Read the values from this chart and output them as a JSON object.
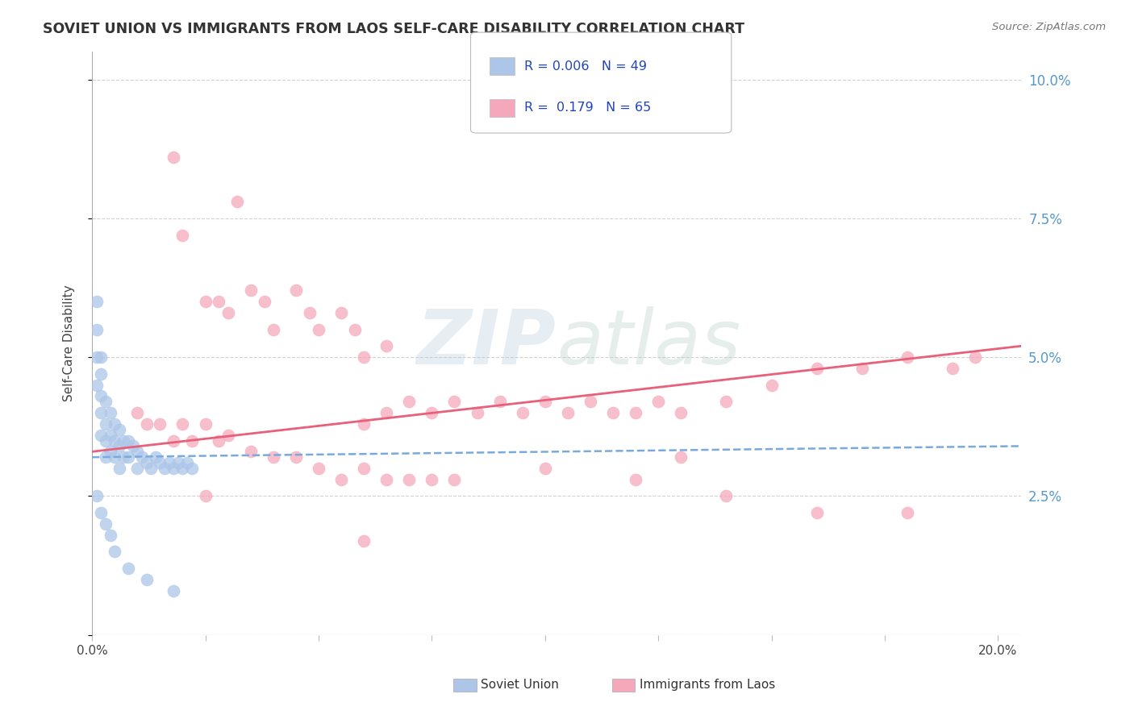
{
  "title": "SOVIET UNION VS IMMIGRANTS FROM LAOS SELF-CARE DISABILITY CORRELATION CHART",
  "source": "Source: ZipAtlas.com",
  "ylabel": "Self-Care Disability",
  "xlim": [
    0.0,
    0.205
  ],
  "ylim": [
    0.0,
    0.105
  ],
  "ytick_positions": [
    0.0,
    0.025,
    0.05,
    0.075,
    0.1
  ],
  "ytick_labels_right": [
    "",
    "2.5%",
    "5.0%",
    "7.5%",
    "10.0%"
  ],
  "xtick_positions": [
    0.0,
    0.025,
    0.05,
    0.075,
    0.1,
    0.125,
    0.15,
    0.175,
    0.2
  ],
  "xtick_labels": [
    "0.0%",
    "",
    "",
    "",
    "",
    "",
    "",
    "",
    "20.0%"
  ],
  "watermark_text": "ZIPatlas",
  "soviet_color": "#adc6e8",
  "laos_color": "#f5a8bc",
  "soviet_line_color": "#7aaadd",
  "laos_line_color": "#e8607a",
  "background_color": "#ffffff",
  "grid_color": "#cccccc",
  "legend_r1": "R = 0.006",
  "legend_n1": "N = 49",
  "legend_r2": "R =  0.179",
  "legend_n2": "N = 65",
  "soviet_x": [
    0.001,
    0.001,
    0.001,
    0.001,
    0.002,
    0.002,
    0.002,
    0.002,
    0.002,
    0.003,
    0.003,
    0.003,
    0.003,
    0.004,
    0.004,
    0.004,
    0.005,
    0.005,
    0.005,
    0.006,
    0.006,
    0.006,
    0.007,
    0.007,
    0.008,
    0.008,
    0.009,
    0.01,
    0.01,
    0.011,
    0.012,
    0.013,
    0.014,
    0.015,
    0.016,
    0.017,
    0.018,
    0.019,
    0.02,
    0.021,
    0.022,
    0.001,
    0.002,
    0.003,
    0.004,
    0.005,
    0.008,
    0.012,
    0.018
  ],
  "soviet_y": [
    0.06,
    0.055,
    0.05,
    0.045,
    0.05,
    0.047,
    0.043,
    0.04,
    0.036,
    0.042,
    0.038,
    0.035,
    0.032,
    0.04,
    0.036,
    0.033,
    0.038,
    0.035,
    0.032,
    0.037,
    0.034,
    0.03,
    0.035,
    0.032,
    0.035,
    0.032,
    0.034,
    0.033,
    0.03,
    0.032,
    0.031,
    0.03,
    0.032,
    0.031,
    0.03,
    0.031,
    0.03,
    0.031,
    0.03,
    0.031,
    0.03,
    0.025,
    0.022,
    0.02,
    0.018,
    0.015,
    0.012,
    0.01,
    0.008
  ],
  "laos_x": [
    0.018,
    0.032,
    0.02,
    0.025,
    0.028,
    0.03,
    0.035,
    0.038,
    0.04,
    0.045,
    0.048,
    0.05,
    0.055,
    0.058,
    0.06,
    0.065,
    0.06,
    0.065,
    0.07,
    0.075,
    0.08,
    0.085,
    0.09,
    0.095,
    0.1,
    0.105,
    0.11,
    0.115,
    0.12,
    0.125,
    0.13,
    0.14,
    0.15,
    0.16,
    0.17,
    0.18,
    0.19,
    0.195,
    0.01,
    0.012,
    0.015,
    0.018,
    0.02,
    0.022,
    0.025,
    0.028,
    0.03,
    0.035,
    0.04,
    0.045,
    0.05,
    0.055,
    0.06,
    0.065,
    0.07,
    0.075,
    0.08,
    0.1,
    0.12,
    0.14,
    0.16,
    0.18,
    0.025,
    0.06,
    0.13
  ],
  "laos_y": [
    0.086,
    0.078,
    0.072,
    0.06,
    0.06,
    0.058,
    0.062,
    0.06,
    0.055,
    0.062,
    0.058,
    0.055,
    0.058,
    0.055,
    0.05,
    0.052,
    0.038,
    0.04,
    0.042,
    0.04,
    0.042,
    0.04,
    0.042,
    0.04,
    0.042,
    0.04,
    0.042,
    0.04,
    0.04,
    0.042,
    0.04,
    0.042,
    0.045,
    0.048,
    0.048,
    0.05,
    0.048,
    0.05,
    0.04,
    0.038,
    0.038,
    0.035,
    0.038,
    0.035,
    0.038,
    0.035,
    0.036,
    0.033,
    0.032,
    0.032,
    0.03,
    0.028,
    0.03,
    0.028,
    0.028,
    0.028,
    0.028,
    0.03,
    0.028,
    0.025,
    0.022,
    0.022,
    0.025,
    0.017,
    0.032
  ]
}
